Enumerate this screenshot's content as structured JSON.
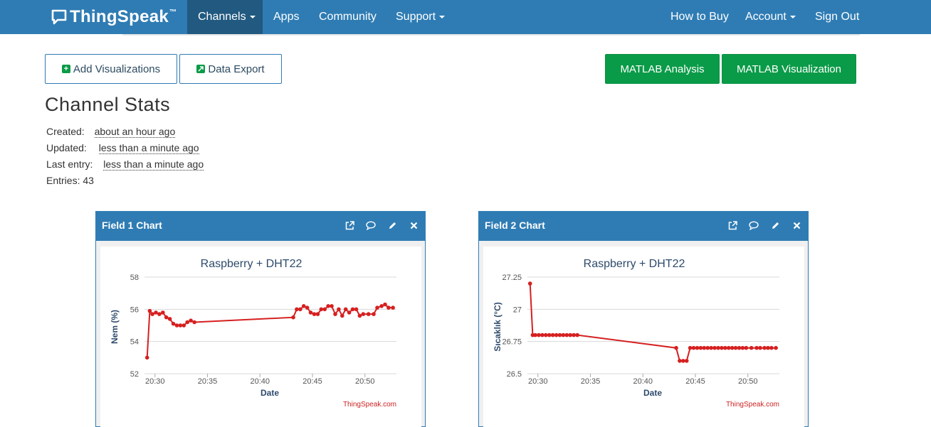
{
  "brand": {
    "name": "ThingSpeak",
    "tm": "™"
  },
  "nav": {
    "left": [
      {
        "label": "Channels",
        "dropdown": true,
        "active": true
      },
      {
        "label": "Apps",
        "dropdown": false
      },
      {
        "label": "Community",
        "dropdown": false
      },
      {
        "label": "Support",
        "dropdown": true
      }
    ],
    "right": [
      {
        "label": "How to Buy",
        "dropdown": false
      },
      {
        "label": "Account",
        "dropdown": true
      },
      {
        "label": "Sign Out",
        "dropdown": false
      }
    ]
  },
  "actions": {
    "add_visualizations": "Add Visualizations",
    "data_export": "Data Export",
    "matlab_analysis": "MATLAB Analysis",
    "matlab_visualization": "MATLAB Visualization"
  },
  "stats": {
    "title": "Channel Stats",
    "created_label": "Created:",
    "created_value": "about an hour ago",
    "updated_label": "Updated:",
    "updated_value": "less than a minute ago",
    "last_entry_label": "Last entry:",
    "last_entry_value": "less than a minute ago",
    "entries_label": "Entries:",
    "entries_value": "43"
  },
  "colors": {
    "nav": "#2f7cb4",
    "nav_active": "#215980",
    "green": "#0a9b48",
    "series": "#d62020"
  },
  "icons": [
    "plus-square-icon",
    "export-square-icon",
    "external-link-icon",
    "comment-icon",
    "pencil-icon",
    "close-icon",
    "chat-bubble-logo-icon"
  ],
  "panels": [
    {
      "title": "Field 1 Chart",
      "chart_data": {
        "type": "line",
        "title": "Raspberry + DHT22",
        "xlabel": "Date",
        "ylabel": "Nem (%)",
        "credit": "ThingSpeak.com",
        "ylim": [
          52,
          58
        ],
        "yticks": [
          52,
          54,
          56,
          58
        ],
        "xlim": [
          "20:29",
          "20:53"
        ],
        "xticks": [
          "20:30",
          "20:35",
          "20:40",
          "20:45",
          "20:50"
        ],
        "grid": true,
        "series": [
          {
            "values": [
              [
                "20:29:15",
                53.0
              ],
              [
                "20:29:30",
                55.9
              ],
              [
                "20:29:45",
                55.7
              ],
              [
                "20:30:05",
                55.8
              ],
              [
                "20:30:25",
                55.7
              ],
              [
                "20:30:45",
                55.8
              ],
              [
                "20:31:05",
                55.5
              ],
              [
                "20:31:25",
                55.4
              ],
              [
                "20:31:45",
                55.1
              ],
              [
                "20:32:05",
                55.0
              ],
              [
                "20:32:25",
                55.0
              ],
              [
                "20:32:45",
                55.0
              ],
              [
                "20:33:05",
                55.2
              ],
              [
                "20:33:25",
                55.3
              ],
              [
                "20:33:45",
                55.2
              ],
              [
                "20:43:10",
                55.5
              ],
              [
                "20:43:30",
                56.0
              ],
              [
                "20:43:50",
                56.0
              ],
              [
                "20:44:10",
                56.2
              ],
              [
                "20:44:30",
                56.1
              ],
              [
                "20:44:50",
                55.8
              ],
              [
                "20:45:10",
                55.7
              ],
              [
                "20:45:30",
                55.7
              ],
              [
                "20:45:50",
                56.0
              ],
              [
                "20:46:10",
                56.0
              ],
              [
                "20:46:30",
                56.2
              ],
              [
                "20:46:50",
                56.2
              ],
              [
                "20:47:10",
                55.7
              ],
              [
                "20:47:30",
                56.0
              ],
              [
                "20:47:50",
                55.6
              ],
              [
                "20:48:10",
                56.0
              ],
              [
                "20:48:30",
                55.8
              ],
              [
                "20:48:50",
                56.0
              ],
              [
                "20:49:10",
                56.0
              ],
              [
                "20:49:30",
                55.6
              ],
              [
                "20:49:50",
                55.7
              ],
              [
                "20:50:20",
                55.7
              ],
              [
                "20:50:50",
                55.7
              ],
              [
                "20:51:10",
                56.1
              ],
              [
                "20:51:35",
                56.2
              ],
              [
                "20:51:55",
                56.3
              ],
              [
                "20:52:15",
                56.1
              ],
              [
                "20:52:40",
                56.1
              ]
            ]
          }
        ]
      }
    },
    {
      "title": "Field 2 Chart",
      "chart_data": {
        "type": "line",
        "title": "Raspberry + DHT22",
        "xlabel": "Date",
        "ylabel": "Sıcaklık (°C)",
        "credit": "ThingSpeak.com",
        "ylim": [
          26.5,
          27.25
        ],
        "yticks": [
          26.5,
          26.75,
          27,
          27.25
        ],
        "xlim": [
          "20:29",
          "20:53"
        ],
        "xticks": [
          "20:30",
          "20:35",
          "20:40",
          "20:45",
          "20:50"
        ],
        "grid": true,
        "series": [
          {
            "values": [
              [
                "20:29:15",
                27.2
              ],
              [
                "20:29:30",
                26.8
              ],
              [
                "20:29:45",
                26.8
              ],
              [
                "20:30:05",
                26.8
              ],
              [
                "20:30:25",
                26.8
              ],
              [
                "20:30:45",
                26.8
              ],
              [
                "20:31:05",
                26.8
              ],
              [
                "20:31:25",
                26.8
              ],
              [
                "20:31:45",
                26.8
              ],
              [
                "20:32:05",
                26.8
              ],
              [
                "20:32:25",
                26.8
              ],
              [
                "20:32:45",
                26.8
              ],
              [
                "20:33:05",
                26.8
              ],
              [
                "20:33:25",
                26.8
              ],
              [
                "20:33:45",
                26.8
              ],
              [
                "20:43:10",
                26.7
              ],
              [
                "20:43:30",
                26.6
              ],
              [
                "20:43:50",
                26.6
              ],
              [
                "20:44:10",
                26.6
              ],
              [
                "20:44:30",
                26.7
              ],
              [
                "20:44:50",
                26.7
              ],
              [
                "20:45:10",
                26.7
              ],
              [
                "20:45:30",
                26.7
              ],
              [
                "20:45:50",
                26.7
              ],
              [
                "20:46:10",
                26.7
              ],
              [
                "20:46:30",
                26.7
              ],
              [
                "20:46:50",
                26.7
              ],
              [
                "20:47:10",
                26.7
              ],
              [
                "20:47:30",
                26.7
              ],
              [
                "20:47:50",
                26.7
              ],
              [
                "20:48:10",
                26.7
              ],
              [
                "20:48:30",
                26.7
              ],
              [
                "20:48:50",
                26.7
              ],
              [
                "20:49:10",
                26.7
              ],
              [
                "20:49:30",
                26.7
              ],
              [
                "20:49:50",
                26.7
              ],
              [
                "20:50:20",
                26.7
              ],
              [
                "20:50:50",
                26.7
              ],
              [
                "20:51:10",
                26.7
              ],
              [
                "20:51:35",
                26.7
              ],
              [
                "20:51:55",
                26.7
              ],
              [
                "20:52:15",
                26.7
              ],
              [
                "20:52:40",
                26.7
              ]
            ]
          }
        ]
      }
    }
  ]
}
